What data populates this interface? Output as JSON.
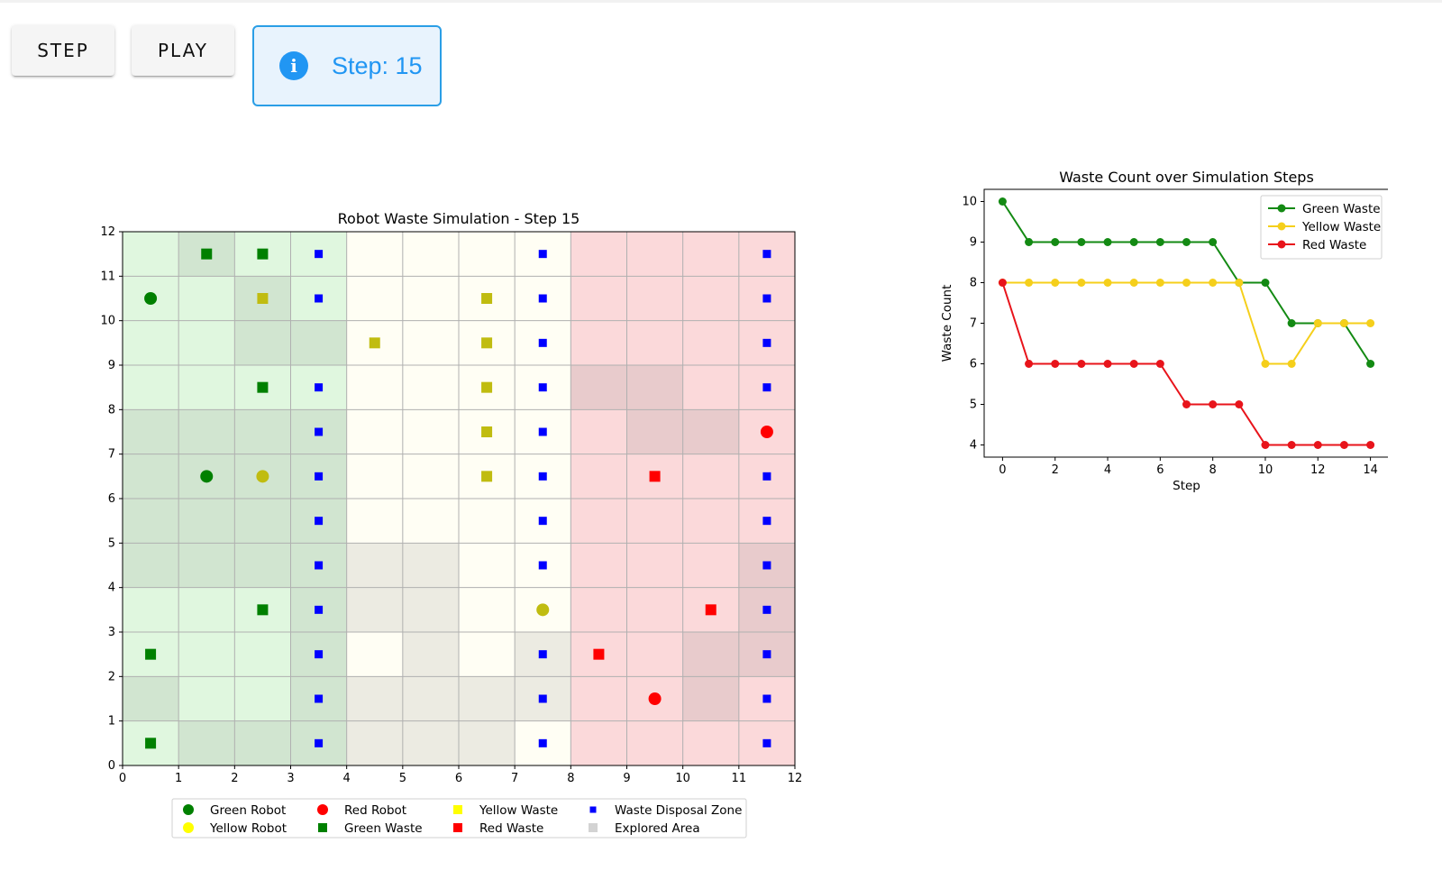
{
  "controls": {
    "step_label": "STEP",
    "play_label": "PLAY",
    "status_text": "Step: 15",
    "info_icon": "info-icon"
  },
  "colors": {
    "accent": "#2196f3",
    "green_zone": "#e0f7df",
    "yellow_zone": "#fffef4",
    "red_zone": "#fbd9da",
    "green": "#008000",
    "yellow": "#c0bc10",
    "red": "#ff0000",
    "disposal": "#0000ff"
  },
  "chart_data": [
    {
      "type": "scatter",
      "title": "Robot Waste Simulation - Step 15",
      "xlim": [
        0,
        12
      ],
      "ylim": [
        0,
        12
      ],
      "xticks": [
        0,
        1,
        2,
        3,
        4,
        5,
        6,
        7,
        8,
        9,
        10,
        11,
        12
      ],
      "yticks": [
        0,
        1,
        2,
        3,
        4,
        5,
        6,
        7,
        8,
        9,
        10,
        11,
        12
      ],
      "grid": true,
      "zones": [
        {
          "name": "green",
          "x_range": [
            0,
            4
          ]
        },
        {
          "name": "yellow",
          "x_range": [
            4,
            8
          ]
        },
        {
          "name": "red",
          "x_range": [
            8,
            12
          ]
        }
      ],
      "explored_cells": [
        [
          1,
          11
        ],
        [
          2,
          10
        ],
        [
          2,
          9
        ],
        [
          3,
          9
        ],
        [
          0,
          7
        ],
        [
          1,
          7
        ],
        [
          2,
          7
        ],
        [
          3,
          7
        ],
        [
          0,
          6
        ],
        [
          1,
          6
        ],
        [
          2,
          6
        ],
        [
          3,
          6
        ],
        [
          0,
          5
        ],
        [
          1,
          5
        ],
        [
          2,
          5
        ],
        [
          3,
          5
        ],
        [
          0,
          4
        ],
        [
          1,
          4
        ],
        [
          2,
          4
        ],
        [
          3,
          4
        ],
        [
          3,
          3
        ],
        [
          3,
          2
        ],
        [
          0,
          1
        ],
        [
          1,
          0
        ],
        [
          2,
          0
        ],
        [
          3,
          1
        ],
        [
          3,
          0
        ],
        [
          4,
          4
        ],
        [
          5,
          4
        ],
        [
          4,
          3
        ],
        [
          5,
          3
        ],
        [
          5,
          2
        ],
        [
          4,
          1
        ],
        [
          5,
          1
        ],
        [
          6,
          1
        ],
        [
          7,
          1
        ],
        [
          7,
          2
        ],
        [
          4,
          0
        ],
        [
          5,
          0
        ],
        [
          6,
          0
        ],
        [
          8,
          8
        ],
        [
          9,
          8
        ],
        [
          9,
          7
        ],
        [
          10,
          7
        ],
        [
          10,
          2
        ],
        [
          10,
          1
        ],
        [
          11,
          4
        ],
        [
          11,
          3
        ],
        [
          11,
          2
        ]
      ],
      "series": [
        {
          "name": "Green Robot",
          "marker": "circle",
          "color": "green",
          "points": [
            [
              0.5,
              10.5
            ],
            [
              1.5,
              6.5
            ]
          ]
        },
        {
          "name": "Yellow Robot",
          "marker": "circle",
          "color": "yellow",
          "points": [
            [
              2.5,
              6.5
            ],
            [
              7.5,
              3.5
            ]
          ]
        },
        {
          "name": "Red Robot",
          "marker": "circle",
          "color": "red",
          "points": [
            [
              9.5,
              1.5
            ],
            [
              11.5,
              7.5
            ]
          ]
        },
        {
          "name": "Green Waste",
          "marker": "square",
          "color": "green",
          "points": [
            [
              1.5,
              11.5
            ],
            [
              2.5,
              11.5
            ],
            [
              2.5,
              8.5
            ],
            [
              2.5,
              3.5
            ],
            [
              0.5,
              2.5
            ],
            [
              0.5,
              0.5
            ]
          ]
        },
        {
          "name": "Yellow Waste",
          "marker": "square",
          "color": "yellow",
          "points": [
            [
              2.5,
              10.5
            ],
            [
              4.5,
              9.5
            ],
            [
              6.5,
              10.5
            ],
            [
              6.5,
              9.5
            ],
            [
              6.5,
              8.5
            ],
            [
              6.5,
              7.5
            ],
            [
              6.5,
              6.5
            ]
          ]
        },
        {
          "name": "Red Waste",
          "marker": "square",
          "color": "red",
          "points": [
            [
              9.5,
              6.5
            ],
            [
              10.5,
              3.5
            ],
            [
              8.5,
              2.5
            ]
          ]
        },
        {
          "name": "Waste Disposal Zone",
          "marker": "small-square",
          "color": "disposal",
          "points": [
            [
              3.5,
              11.5
            ],
            [
              3.5,
              10.5
            ],
            [
              3.5,
              8.5
            ],
            [
              3.5,
              7.5
            ],
            [
              3.5,
              6.5
            ],
            [
              3.5,
              5.5
            ],
            [
              3.5,
              4.5
            ],
            [
              3.5,
              3.5
            ],
            [
              3.5,
              2.5
            ],
            [
              3.5,
              1.5
            ],
            [
              3.5,
              0.5
            ],
            [
              7.5,
              11.5
            ],
            [
              7.5,
              10.5
            ],
            [
              7.5,
              9.5
            ],
            [
              7.5,
              8.5
            ],
            [
              7.5,
              7.5
            ],
            [
              7.5,
              6.5
            ],
            [
              7.5,
              5.5
            ],
            [
              7.5,
              4.5
            ],
            [
              7.5,
              3.5
            ],
            [
              7.5,
              2.5
            ],
            [
              7.5,
              1.5
            ],
            [
              7.5,
              0.5
            ],
            [
              11.5,
              11.5
            ],
            [
              11.5,
              10.5
            ],
            [
              11.5,
              9.5
            ],
            [
              11.5,
              8.5
            ],
            [
              11.5,
              7.5
            ],
            [
              11.5,
              6.5
            ],
            [
              11.5,
              5.5
            ],
            [
              11.5,
              4.5
            ],
            [
              11.5,
              3.5
            ],
            [
              11.5,
              2.5
            ],
            [
              11.5,
              1.5
            ],
            [
              11.5,
              0.5
            ]
          ]
        }
      ],
      "legend": {
        "placement": "bottom-center",
        "entries": [
          {
            "label": "Green Robot",
            "marker": "circle",
            "color": "green"
          },
          {
            "label": "Red Robot",
            "marker": "circle",
            "color": "red"
          },
          {
            "label": "Yellow Waste",
            "marker": "square",
            "color": "yellow-bright"
          },
          {
            "label": "Waste Disposal Zone",
            "marker": "small-square",
            "color": "disposal"
          },
          {
            "label": "Yellow Robot",
            "marker": "circle",
            "color": "yellow-bright"
          },
          {
            "label": "Green Waste",
            "marker": "square",
            "color": "green"
          },
          {
            "label": "Red Waste",
            "marker": "square",
            "color": "red"
          },
          {
            "label": "Explored Area",
            "marker": "square",
            "color": "explored"
          }
        ]
      }
    },
    {
      "type": "line",
      "title": "Waste Count over Simulation Steps",
      "xlabel": "Step",
      "ylabel": "Waste Count",
      "xlim": [
        -0.7,
        14.7
      ],
      "ylim": [
        3.7,
        10.3
      ],
      "xticks": [
        0,
        2,
        4,
        6,
        8,
        10,
        12,
        14
      ],
      "yticks": [
        4,
        5,
        6,
        7,
        8,
        9,
        10
      ],
      "legend_placement": "top-right",
      "x": [
        0,
        1,
        2,
        3,
        4,
        5,
        6,
        7,
        8,
        9,
        10,
        11,
        12,
        13,
        14
      ],
      "series": [
        {
          "name": "Green Waste",
          "color": "#138a13",
          "values": [
            10,
            9,
            9,
            9,
            9,
            9,
            9,
            9,
            9,
            8,
            8,
            7,
            7,
            7,
            6
          ]
        },
        {
          "name": "Yellow Waste",
          "color": "#f5cf1b",
          "values": [
            8,
            8,
            8,
            8,
            8,
            8,
            8,
            8,
            8,
            8,
            6,
            6,
            7,
            7,
            7
          ]
        },
        {
          "name": "Red Waste",
          "color": "#e8141b",
          "values": [
            8,
            6,
            6,
            6,
            6,
            6,
            6,
            5,
            5,
            5,
            4,
            4,
            4,
            4,
            4
          ]
        }
      ]
    }
  ]
}
